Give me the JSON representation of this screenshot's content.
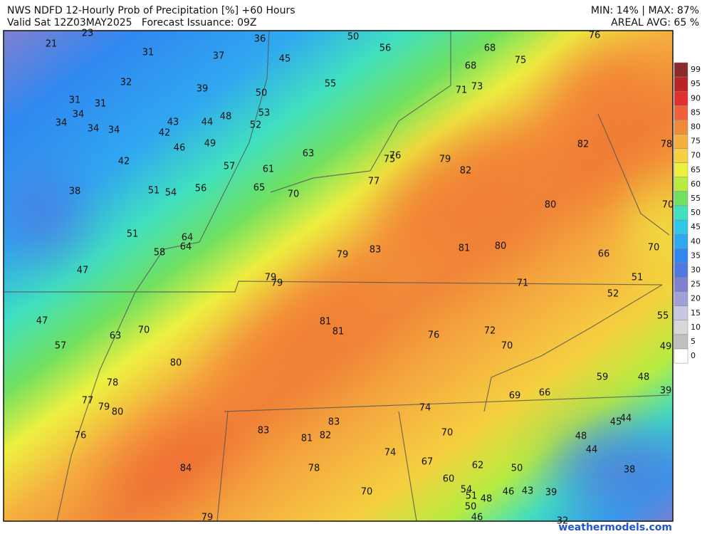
{
  "header": {
    "title": "NWS NDFD 12-Hourly Prob of Precipitation [%] +60 Hours",
    "valid": "Valid Sat 12Z03MAY2025   Forecast Issuance: 09Z",
    "minmax": "MIN: 14% | MAX: 87%",
    "areal_avg": "AREAL AVG: 65 %"
  },
  "map": {
    "labels": [
      23,
      21,
      31,
      37,
      36,
      45,
      50,
      56,
      68,
      76,
      75,
      32,
      39,
      55,
      68,
      71,
      73,
      50,
      31,
      31,
      34,
      34,
      34,
      34,
      43,
      42,
      44,
      48,
      53,
      52,
      49,
      46,
      63,
      76,
      75,
      79,
      82,
      82,
      78,
      42,
      57,
      61,
      77,
      65,
      70,
      38,
      51,
      54,
      56,
      80,
      70,
      51,
      64,
      64,
      58,
      83,
      81,
      80,
      66,
      70,
      79,
      47,
      79,
      79,
      71,
      51,
      52,
      47,
      55,
      81,
      81,
      76,
      72,
      63,
      70,
      57,
      70,
      49,
      80,
      59,
      48,
      78,
      39,
      69,
      66,
      77,
      79,
      80,
      74,
      44,
      45,
      83,
      83,
      76,
      81,
      82,
      70,
      48,
      44,
      74,
      67,
      62,
      50,
      84,
      78,
      38,
      60,
      54,
      70,
      46,
      43,
      39,
      51,
      48,
      50,
      46,
      79,
      32
    ]
  },
  "colorbar": {
    "items": [
      {
        "label": "99",
        "color": "#8b2a2a"
      },
      {
        "label": "95",
        "color": "#b82424"
      },
      {
        "label": "90",
        "color": "#e03030"
      },
      {
        "label": "85",
        "color": "#f0603a"
      },
      {
        "label": "80",
        "color": "#f08a3a"
      },
      {
        "label": "75",
        "color": "#f5b040"
      },
      {
        "label": "70",
        "color": "#f5d040"
      },
      {
        "label": "65",
        "color": "#eef040"
      },
      {
        "label": "60",
        "color": "#b8ec40"
      },
      {
        "label": "55",
        "color": "#70e060"
      },
      {
        "label": "50",
        "color": "#40e0c0"
      },
      {
        "label": "45",
        "color": "#30c8e8"
      },
      {
        "label": "40",
        "color": "#30a8f0"
      },
      {
        "label": "35",
        "color": "#3088f0"
      },
      {
        "label": "30",
        "color": "#5078e0"
      },
      {
        "label": "25",
        "color": "#8080d0"
      },
      {
        "label": "20",
        "color": "#a0a0d8"
      },
      {
        "label": "15",
        "color": "#c8c8e0"
      },
      {
        "label": "10",
        "color": "#d8d8d8"
      },
      {
        "label": "5",
        "color": "#c0c0c0"
      },
      {
        "label": "0",
        "color": "#ffffff"
      }
    ]
  },
  "footer": {
    "credit": "weathermodels.com"
  }
}
